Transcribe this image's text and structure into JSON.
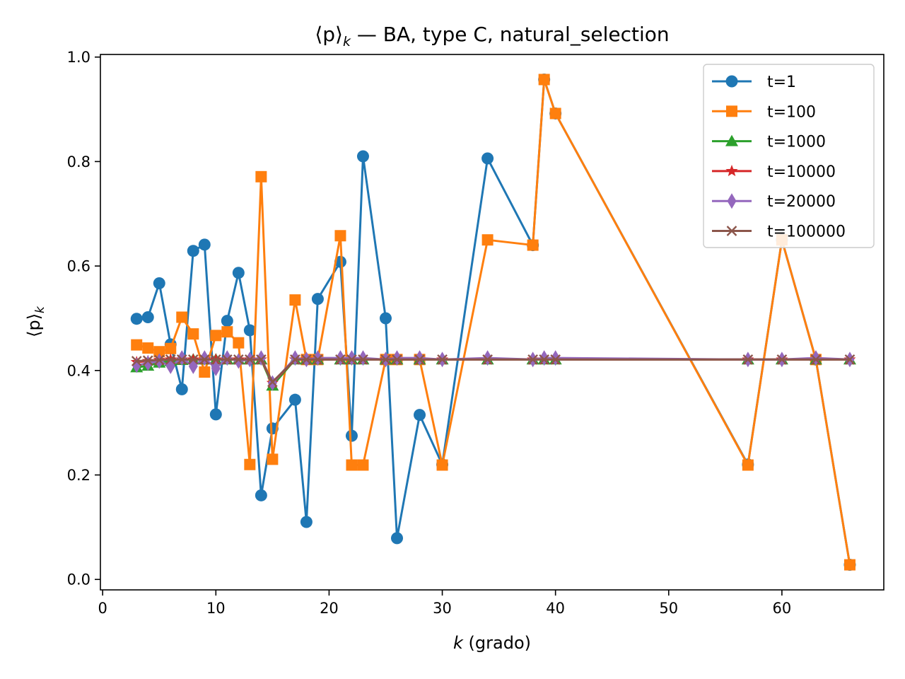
{
  "chart_data": {
    "type": "line",
    "title_main": "⟨p⟩",
    "title_sub": "k",
    "title_rest": " — BA, type C, natural_selection",
    "xlabel_var": "k",
    "xlabel_rest": " (grado)",
    "ylabel_main": "⟨p⟩",
    "ylabel_sub": "k",
    "xlim": [
      -0.2,
      69.0
    ],
    "ylim": [
      -0.02,
      1.005
    ],
    "xticks": [
      0,
      10,
      20,
      30,
      40,
      50,
      60
    ],
    "yticks": [
      0.0,
      0.2,
      0.4,
      0.6,
      0.8,
      1.0
    ],
    "legend_position": "top-right",
    "series": [
      {
        "name": "t=1",
        "color": "#1f77b4",
        "marker": "circle",
        "x": [
          3,
          4,
          5,
          6,
          7,
          8,
          9,
          10,
          11,
          12,
          13,
          14,
          15,
          17,
          18,
          19,
          21,
          22,
          23,
          25,
          26,
          28,
          30,
          34,
          38,
          39,
          40,
          57,
          60,
          63,
          66
        ],
        "y": [
          0.499,
          0.502,
          0.567,
          0.45,
          0.364,
          0.629,
          0.641,
          0.316,
          0.495,
          0.587,
          0.477,
          0.161,
          0.289,
          0.344,
          0.11,
          0.537,
          0.608,
          0.275,
          0.81,
          0.5,
          0.079,
          0.315,
          0.22,
          0.806,
          0.64,
          0.957,
          0.892,
          0.22,
          0.65,
          0.421,
          0.028
        ]
      },
      {
        "name": "t=100",
        "color": "#ff7f0e",
        "marker": "square",
        "x": [
          3,
          4,
          5,
          6,
          7,
          8,
          9,
          10,
          11,
          12,
          13,
          14,
          15,
          17,
          18,
          19,
          21,
          22,
          23,
          25,
          26,
          28,
          30,
          34,
          38,
          39,
          40,
          57,
          60,
          63,
          66
        ],
        "y": [
          0.449,
          0.443,
          0.436,
          0.442,
          0.502,
          0.47,
          0.397,
          0.467,
          0.474,
          0.453,
          0.22,
          0.771,
          0.23,
          0.535,
          0.421,
          0.421,
          0.658,
          0.219,
          0.219,
          0.421,
          0.421,
          0.421,
          0.219,
          0.65,
          0.64,
          0.957,
          0.892,
          0.219,
          0.65,
          0.421,
          0.028
        ]
      },
      {
        "name": "t=1000",
        "color": "#2ca02c",
        "marker": "triangle",
        "x": [
          3,
          4,
          5,
          6,
          7,
          8,
          9,
          10,
          11,
          12,
          13,
          14,
          15,
          17,
          18,
          19,
          21,
          22,
          23,
          25,
          26,
          28,
          30,
          34,
          38,
          39,
          40,
          57,
          60,
          63,
          66
        ],
        "y": [
          0.406,
          0.409,
          0.415,
          0.418,
          0.42,
          0.421,
          0.421,
          0.421,
          0.421,
          0.421,
          0.421,
          0.421,
          0.371,
          0.421,
          0.421,
          0.421,
          0.421,
          0.421,
          0.421,
          0.421,
          0.421,
          0.421,
          0.421,
          0.421,
          0.421,
          0.421,
          0.421,
          0.421,
          0.421,
          0.421,
          0.421
        ]
      },
      {
        "name": "t=10000",
        "color": "#d62728",
        "marker": "star",
        "x": [
          3,
          4,
          5,
          6,
          7,
          8,
          9,
          10,
          11,
          12,
          13,
          14,
          15,
          17,
          18,
          19,
          21,
          22,
          23,
          25,
          26,
          28,
          30,
          34,
          38,
          39,
          40,
          57,
          60,
          63,
          66
        ],
        "y": [
          0.416,
          0.418,
          0.42,
          0.421,
          0.421,
          0.421,
          0.421,
          0.421,
          0.421,
          0.421,
          0.421,
          0.421,
          0.376,
          0.421,
          0.421,
          0.421,
          0.421,
          0.421,
          0.421,
          0.421,
          0.421,
          0.421,
          0.421,
          0.421,
          0.421,
          0.421,
          0.421,
          0.421,
          0.421,
          0.421,
          0.421
        ]
      },
      {
        "name": "t=20000",
        "color": "#9467bd",
        "marker": "diamond",
        "x": [
          3,
          4,
          5,
          6,
          7,
          8,
          9,
          10,
          11,
          12,
          13,
          14,
          15,
          17,
          18,
          19,
          21,
          22,
          23,
          25,
          26,
          28,
          30,
          34,
          38,
          39,
          40,
          57,
          60,
          63,
          66
        ],
        "y": [
          0.41,
          0.414,
          0.418,
          0.408,
          0.424,
          0.408,
          0.424,
          0.404,
          0.424,
          0.418,
          0.421,
          0.424,
          0.376,
          0.424,
          0.421,
          0.424,
          0.424,
          0.424,
          0.424,
          0.421,
          0.424,
          0.424,
          0.421,
          0.424,
          0.421,
          0.424,
          0.424,
          0.421,
          0.421,
          0.424,
          0.421
        ]
      },
      {
        "name": "t=100000",
        "color": "#8c564b",
        "marker": "x",
        "x": [
          3,
          4,
          5,
          6,
          7,
          8,
          9,
          10,
          11,
          12,
          13,
          14,
          15,
          17,
          18,
          19,
          21,
          22,
          23,
          25,
          26,
          28,
          30,
          34,
          38,
          39,
          40,
          57,
          60,
          63,
          66
        ],
        "y": [
          0.418,
          0.419,
          0.42,
          0.421,
          0.421,
          0.421,
          0.421,
          0.421,
          0.421,
          0.421,
          0.421,
          0.421,
          0.378,
          0.421,
          0.421,
          0.421,
          0.421,
          0.421,
          0.421,
          0.421,
          0.421,
          0.421,
          0.421,
          0.421,
          0.421,
          0.421,
          0.421,
          0.421,
          0.421,
          0.421,
          0.421
        ]
      }
    ]
  }
}
